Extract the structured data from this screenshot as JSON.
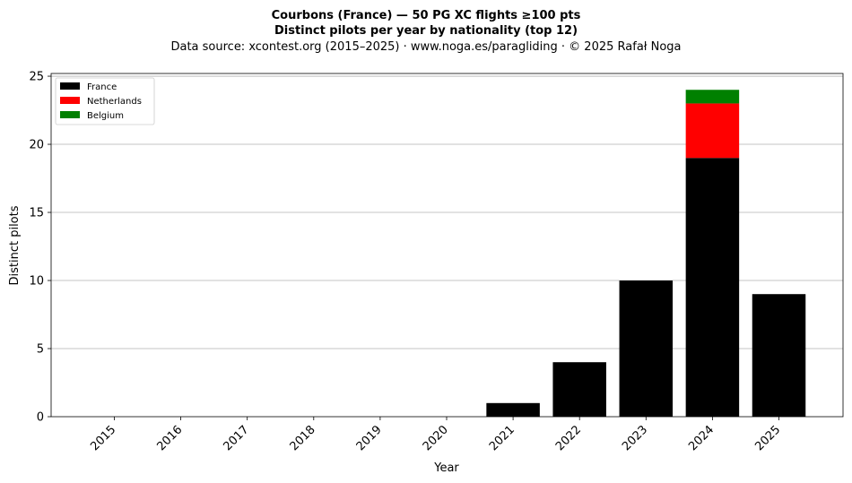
{
  "chart_data": {
    "type": "bar",
    "stacked": true,
    "title": "Courbons (France)  —  50 PG XC flights ≥100 pts",
    "subtitle": "Distinct pilots per year by nationality (top 12)",
    "source": "Data source: xcontest.org (2015–2025)  ·  www.noga.es/paragliding  ·  © 2025 Rafał Noga",
    "xlabel": "Year",
    "ylabel": "Distinct pilots",
    "ylim": [
      0,
      25
    ],
    "yticks": [
      0,
      5,
      10,
      15,
      20,
      25
    ],
    "grid": "horizontal",
    "legend_position": "top-left",
    "categories": [
      "2015",
      "2016",
      "2017",
      "2018",
      "2019",
      "2020",
      "2021",
      "2022",
      "2023",
      "2024",
      "2025"
    ],
    "series": [
      {
        "name": "France",
        "color": "#000000",
        "values": [
          0,
          0,
          0,
          0,
          0,
          0,
          1,
          4,
          10,
          19,
          9
        ]
      },
      {
        "name": "Netherlands",
        "color": "#ff0000",
        "values": [
          0,
          0,
          0,
          0,
          0,
          0,
          0,
          0,
          0,
          4,
          0
        ]
      },
      {
        "name": "Belgium",
        "color": "#008000",
        "values": [
          0,
          0,
          0,
          0,
          0,
          0,
          0,
          0,
          0,
          1,
          0
        ]
      }
    ]
  }
}
